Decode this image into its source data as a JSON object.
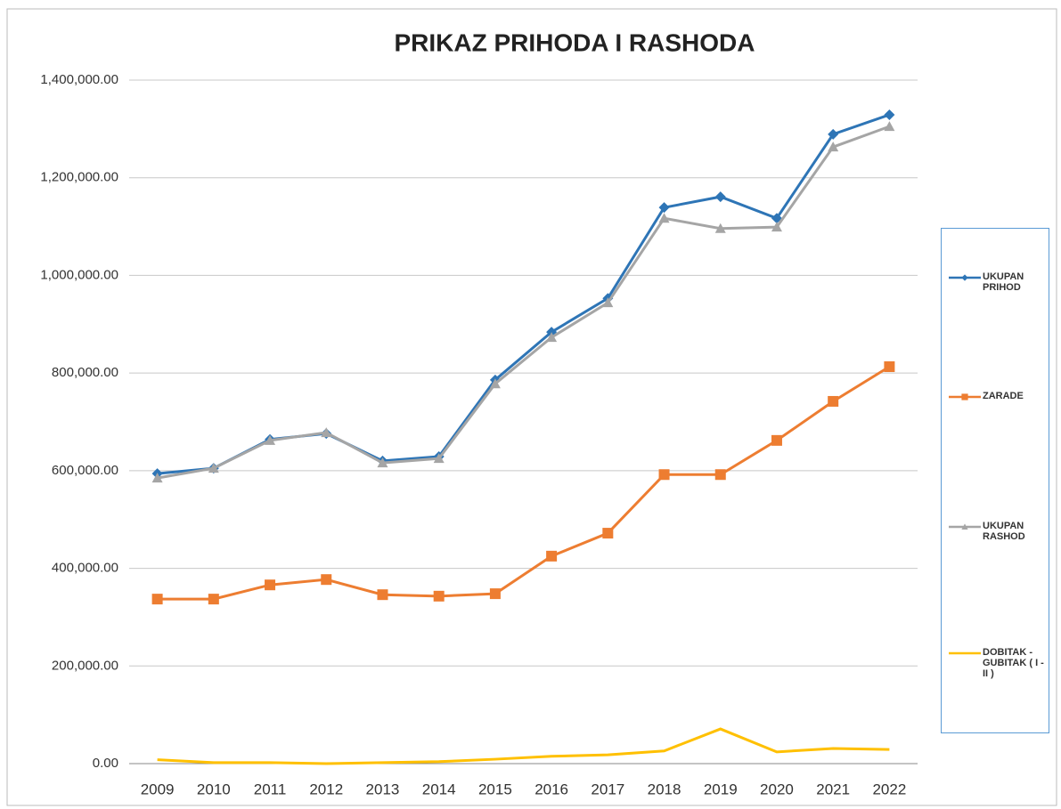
{
  "chart_data": {
    "type": "line",
    "title": "PRIKAZ PRIHODA I RASHODA",
    "categories": [
      "2009",
      "2010",
      "2011",
      "2012",
      "2013",
      "2014",
      "2015",
      "2016",
      "2017",
      "2018",
      "2019",
      "2020",
      "2021",
      "2022"
    ],
    "series": [
      {
        "name": "UKUPAN PRIHOD",
        "color": "#2e75b6",
        "marker": "diamond",
        "values": [
          594000,
          605000,
          664000,
          676000,
          620000,
          629000,
          786000,
          884000,
          953000,
          1139000,
          1161000,
          1117000,
          1289000,
          1329000
        ]
      },
      {
        "name": "ZARADE",
        "color": "#ed7d31",
        "marker": "square",
        "values": [
          337000,
          337000,
          366000,
          377000,
          346000,
          343000,
          348000,
          425000,
          472000,
          592000,
          592000,
          662000,
          742000,
          813000
        ]
      },
      {
        "name": "UKUPAN RASHOD",
        "color": "#a5a5a5",
        "marker": "triangle",
        "values": [
          585000,
          605000,
          662000,
          678000,
          616000,
          625000,
          778000,
          873000,
          944000,
          1117000,
          1096000,
          1099000,
          1263000,
          1305000
        ]
      },
      {
        "name": "DOBITAK - GUBITAK ( I - II )",
        "color": "#ffc000",
        "marker": "none",
        "values": [
          8000,
          2000,
          2000,
          0,
          2000,
          4000,
          9000,
          15000,
          18000,
          26000,
          71000,
          24000,
          31000,
          29000
        ]
      }
    ],
    "ylim": [
      0,
      1400000
    ],
    "yticks": [
      {
        "value": 0,
        "label": "0.00"
      },
      {
        "value": 200000,
        "label": "200,000.00"
      },
      {
        "value": 400000,
        "label": "400,000.00"
      },
      {
        "value": 600000,
        "label": "600,000.00"
      },
      {
        "value": 800000,
        "label": "800,000.00"
      },
      {
        "value": 1000000,
        "label": "1,000,000.00"
      },
      {
        "value": 1200000,
        "label": "1,200,000.00"
      },
      {
        "value": 1400000,
        "label": "1,400,000.00"
      }
    ],
    "grid": true,
    "legend": "right"
  }
}
